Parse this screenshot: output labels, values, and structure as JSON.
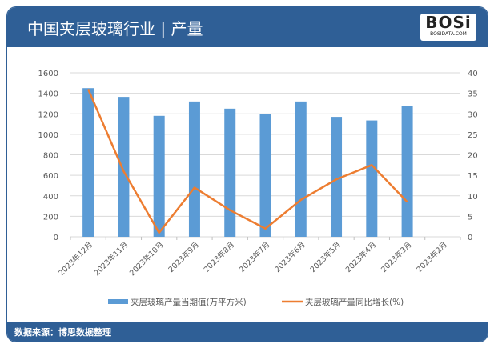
{
  "header": {
    "title": "中国夹层玻璃行业 | 产量",
    "logo_text": "BOSi",
    "logo_sub": "BOSIDATA.COM"
  },
  "footer": {
    "source": "数据来源：博思数据整理"
  },
  "colors": {
    "bar": "#5b9bd5",
    "line": "#ed7d31",
    "header": "#2f5f96"
  },
  "chart_data": {
    "type": "bar+line",
    "categories": [
      "2023年12月",
      "2023年11月",
      "2023年10月",
      "2023年9月",
      "2023年8月",
      "2023年7月",
      "2023年6月",
      "2023年5月",
      "2023年4月",
      "2023年3月",
      "2023年2月"
    ],
    "series": [
      {
        "name": "夹层玻璃产量当期值(万平方米)",
        "type": "bar",
        "axis": "left",
        "values": [
          1450,
          1365,
          1180,
          1320,
          1250,
          1195,
          1320,
          1170,
          1135,
          1280,
          null
        ]
      },
      {
        "name": "夹层玻璃产量同比增长(%)",
        "type": "line",
        "axis": "right",
        "values": [
          36,
          16,
          1,
          12,
          6.5,
          2,
          9,
          14,
          17.5,
          8.5,
          null
        ]
      }
    ],
    "y_left": {
      "range": [
        0,
        1600
      ],
      "ticks": [
        "0",
        "200",
        "400",
        "600",
        "800",
        "1000",
        "1200",
        "1400",
        "1600"
      ]
    },
    "y_right": {
      "range": [
        0,
        40
      ],
      "ticks": [
        "0",
        "5",
        "10",
        "15",
        "20",
        "25",
        "30",
        "35",
        "40"
      ]
    },
    "grid": true,
    "legend": "bottom"
  }
}
